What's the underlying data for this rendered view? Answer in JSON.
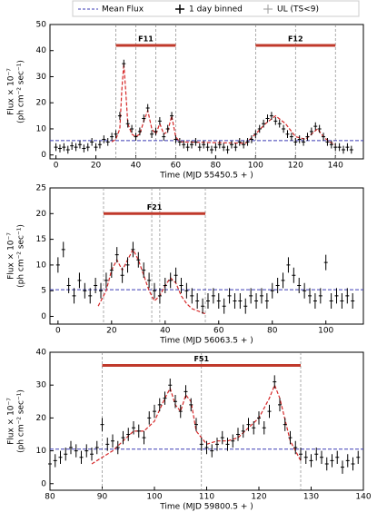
{
  "legend": [
    "Mean Flux",
    "1 day binned",
    "UL (TS<9)"
  ],
  "chart_data": [
    {
      "type": "errorbar",
      "xlabel": "Time (MJD 55450.5 + )",
      "ylabel": [
        "Flux × 10⁻⁷",
        "(ph cm⁻² sec⁻¹)"
      ],
      "xlim": [
        -3,
        154
      ],
      "ylim": [
        -1.5,
        50
      ],
      "xticks": [
        0,
        20,
        40,
        60,
        80,
        100,
        120,
        140
      ],
      "yticks": [
        0,
        10,
        20,
        30,
        40,
        50
      ],
      "mean_flux": 5.5,
      "yerr": 1.5,
      "color": "#000000",
      "mean_color": "#3b3bb5",
      "fit_color": "#d62728",
      "flare_color": "#c0392b",
      "flares": [
        {
          "label": "F11",
          "start": 30,
          "end": 60,
          "level": 42
        },
        {
          "label": "F12",
          "start": 100,
          "end": 140,
          "level": 42
        }
      ],
      "vlines": [
        30,
        40,
        50,
        60,
        100,
        120,
        140
      ],
      "x": [
        0,
        2,
        4,
        6,
        8,
        10,
        12,
        14,
        16,
        18,
        20,
        22,
        24,
        26,
        28,
        30,
        32,
        34,
        36,
        38,
        40,
        42,
        44,
        46,
        48,
        50,
        52,
        54,
        56,
        58,
        60,
        62,
        64,
        66,
        68,
        70,
        72,
        74,
        76,
        78,
        80,
        82,
        84,
        86,
        88,
        90,
        92,
        94,
        96,
        98,
        100,
        102,
        104,
        106,
        108,
        110,
        112,
        114,
        116,
        118,
        120,
        122,
        124,
        126,
        128,
        130,
        132,
        134,
        136,
        138,
        140,
        142,
        144,
        146,
        148
      ],
      "values": [
        3,
        2.5,
        3,
        2,
        3.5,
        3,
        4,
        2.5,
        3,
        5,
        3,
        4,
        6,
        5,
        7,
        8,
        15,
        35,
        12,
        10,
        7,
        9,
        14,
        18,
        8,
        9,
        13,
        7,
        10,
        15,
        6,
        5,
        4,
        3,
        4,
        5,
        3,
        4,
        3,
        2,
        3,
        4,
        3,
        2,
        4,
        3,
        5,
        4,
        5,
        6,
        8,
        10,
        12,
        14,
        15,
        13,
        12,
        10,
        8,
        7,
        5,
        6,
        5,
        7,
        9,
        11,
        10,
        7,
        5,
        4,
        3,
        3,
        2,
        3,
        2
      ],
      "fit_x": [
        28,
        30,
        32,
        33,
        34,
        35,
        36,
        38,
        40,
        42,
        44,
        46,
        48,
        50,
        52,
        54,
        56,
        58,
        60,
        62,
        95,
        100,
        105,
        110,
        115,
        120,
        125,
        128,
        131,
        134,
        137,
        140
      ],
      "fit": [
        5,
        6,
        10,
        25,
        35,
        24,
        12,
        8,
        7,
        8,
        13,
        17,
        10,
        8,
        12,
        8,
        9,
        15,
        7,
        5,
        4.5,
        8,
        12,
        15,
        12,
        7,
        6,
        8,
        10,
        7,
        5,
        4
      ]
    },
    {
      "type": "errorbar",
      "xlabel": "Time (MJD 56063.5 + )",
      "ylabel": [
        "Flux × 10⁻⁷",
        "(ph cm⁻² sec⁻¹)"
      ],
      "xlim": [
        -3,
        114
      ],
      "ylim": [
        -1.5,
        25
      ],
      "xticks": [
        0,
        20,
        40,
        60,
        80,
        100
      ],
      "yticks": [
        0,
        5,
        10,
        15,
        20,
        25
      ],
      "mean_flux": 5.2,
      "yerr": 1.5,
      "color": "#000000",
      "mean_color": "#3b3bb5",
      "fit_color": "#d62728",
      "flare_color": "#c0392b",
      "flares": [
        {
          "label": "F21",
          "start": 17,
          "end": 55,
          "level": 20
        }
      ],
      "vlines": [
        17,
        35,
        38,
        55
      ],
      "x": [
        0,
        2,
        4,
        6,
        8,
        10,
        12,
        14,
        16,
        18,
        20,
        22,
        24,
        26,
        28,
        30,
        32,
        34,
        36,
        38,
        40,
        42,
        44,
        46,
        48,
        50,
        52,
        54,
        56,
        58,
        60,
        62,
        64,
        66,
        68,
        70,
        72,
        74,
        76,
        78,
        80,
        82,
        84,
        86,
        88,
        90,
        92,
        94,
        96,
        98,
        100,
        102,
        104,
        106,
        108,
        110
      ],
      "values": [
        10,
        13,
        6,
        4,
        7,
        5,
        4,
        6,
        5,
        7,
        9,
        12,
        8,
        10,
        13,
        11,
        9,
        7,
        5,
        4,
        6,
        7,
        8,
        6,
        5,
        4,
        3,
        2,
        3,
        4,
        3,
        2,
        4,
        3,
        3,
        2,
        4,
        3,
        4,
        3,
        5,
        6,
        7,
        10,
        8,
        6,
        5,
        4,
        3,
        4,
        10.5,
        3,
        4,
        3,
        4,
        3
      ],
      "fit_x": [
        15,
        18,
        20,
        22,
        24,
        26,
        28,
        30,
        32,
        34,
        36,
        38,
        40,
        42,
        44,
        46,
        48,
        50,
        55
      ],
      "fit": [
        2,
        5,
        9,
        11,
        9,
        11,
        13,
        11,
        8,
        5,
        3,
        4,
        6,
        7.5,
        6.5,
        4,
        2.5,
        1.5,
        0.5
      ]
    },
    {
      "type": "errorbar",
      "xlabel": "Time (MJD 59800.5 + )",
      "ylabel": [
        "Flux × 10⁻⁷",
        "(ph cm⁻² sec⁻¹)"
      ],
      "xlim": [
        80,
        140
      ],
      "ylim": [
        -2,
        40
      ],
      "xticks": [
        80,
        90,
        100,
        110,
        120,
        130,
        140
      ],
      "yticks": [
        0,
        10,
        20,
        30,
        40
      ],
      "mean_flux": 10.5,
      "yerr": 2,
      "color": "#000000",
      "mean_color": "#3b3bb5",
      "fit_color": "#d62728",
      "flare_color": "#c0392b",
      "flares": [
        {
          "label": "F51",
          "start": 90,
          "end": 128,
          "level": 36
        }
      ],
      "vlines": [
        90,
        109,
        128
      ],
      "x": [
        80,
        81,
        82,
        83,
        84,
        85,
        86,
        87,
        88,
        89,
        90,
        91,
        92,
        93,
        94,
        95,
        96,
        97,
        98,
        99,
        100,
        101,
        102,
        103,
        104,
        105,
        106,
        107,
        108,
        109,
        110,
        111,
        112,
        113,
        114,
        115,
        116,
        117,
        118,
        119,
        120,
        121,
        122,
        123,
        124,
        125,
        126,
        127,
        128,
        129,
        130,
        131,
        132,
        133,
        134,
        135,
        136,
        137,
        138,
        139
      ],
      "values": [
        6,
        7,
        8,
        9,
        11,
        10,
        8,
        10,
        9,
        11,
        18,
        12,
        13,
        11,
        14,
        15,
        17,
        16,
        14,
        20,
        22,
        24,
        26,
        30,
        25,
        22,
        28,
        24,
        18,
        12,
        11,
        10,
        12,
        14,
        12,
        13,
        15,
        16,
        18,
        17,
        20,
        17,
        22,
        31,
        24,
        18,
        14,
        11,
        9,
        8,
        7,
        9,
        8,
        6,
        7,
        8,
        5,
        7,
        6,
        8
      ],
      "fit_x": [
        88,
        92,
        94,
        96,
        98,
        100,
        102,
        103,
        104,
        105,
        106,
        107,
        108,
        110,
        112,
        114,
        116,
        118,
        120,
        122,
        123,
        124,
        126,
        128
      ],
      "fit": [
        6,
        10,
        13,
        16,
        16,
        19,
        26,
        29,
        24,
        22,
        27,
        25,
        16,
        12,
        13,
        13,
        14,
        17,
        20,
        26,
        30,
        26,
        13,
        7
      ]
    }
  ]
}
